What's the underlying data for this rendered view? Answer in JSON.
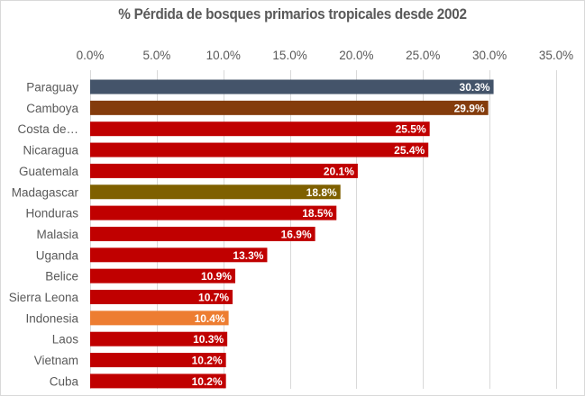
{
  "chart_data": {
    "type": "bar",
    "orientation": "horizontal",
    "title": "% Pérdida de bosques primarios tropicales desde 2002",
    "xlabel": "",
    "ylabel": "",
    "xlim": [
      0,
      35
    ],
    "x_ticks": [
      "0.0%",
      "5.0%",
      "10.0%",
      "15.0%",
      "20.0%",
      "25.0%",
      "30.0%",
      "35.0%"
    ],
    "x_tick_values": [
      0,
      5,
      10,
      15,
      20,
      25,
      30,
      35
    ],
    "x_axis_position": "top",
    "grid": true,
    "legend": "none",
    "categories": [
      "Paraguay",
      "Camboya",
      "Costa de…",
      "Nicaragua",
      "Guatemala",
      "Madagascar",
      "Honduras",
      "Malasia",
      "Uganda",
      "Belice",
      "Sierra Leona",
      "Indonesia",
      "Laos",
      "Vietnam",
      "Cuba"
    ],
    "values": [
      30.3,
      29.9,
      25.5,
      25.4,
      20.1,
      18.8,
      18.5,
      16.9,
      13.3,
      10.9,
      10.7,
      10.4,
      10.3,
      10.2,
      10.2
    ],
    "data_labels": [
      "30.3%",
      "29.9%",
      "25.5%",
      "25.4%",
      "20.1%",
      "18.8%",
      "18.5%",
      "16.9%",
      "13.3%",
      "10.9%",
      "10.7%",
      "10.4%",
      "10.3%",
      "10.2%",
      "10.2%"
    ],
    "bar_colors": [
      "#44546A",
      "#843C0C",
      "#C00000",
      "#C00000",
      "#C00000",
      "#7F6000",
      "#C00000",
      "#C00000",
      "#C00000",
      "#C00000",
      "#C00000",
      "#ED7D31",
      "#C00000",
      "#C00000",
      "#C00000"
    ]
  }
}
